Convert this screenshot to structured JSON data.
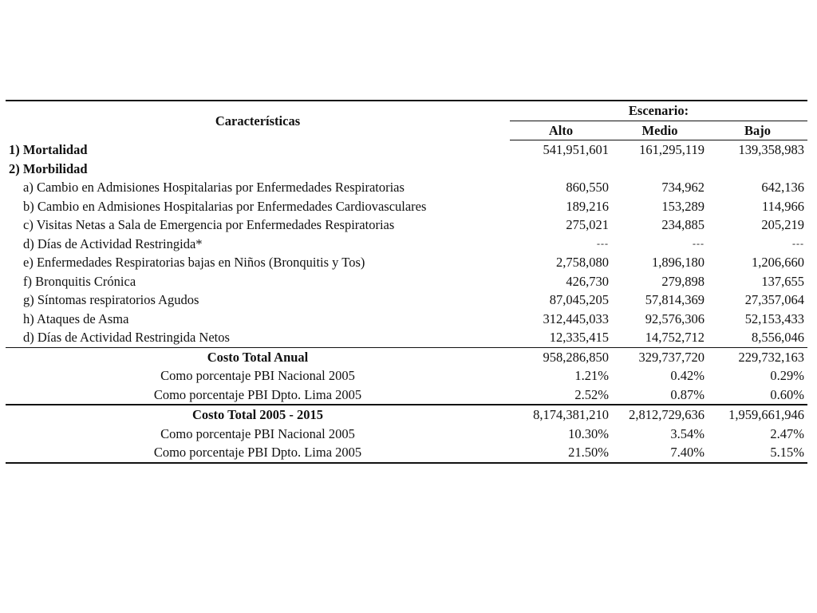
{
  "header": {
    "characteristics": "Características",
    "scenario": "Escenario:",
    "columns": [
      "Alto",
      "Medio",
      "Bajo"
    ]
  },
  "sections": {
    "mortalidad": {
      "label": "1) Mortalidad",
      "values": [
        "541,951,601",
        "161,295,119",
        "139,358,983"
      ]
    },
    "morbilidad": {
      "label": "2) Morbilidad"
    }
  },
  "rows": [
    {
      "label": "a) Cambio en Admisiones Hospitalarias por Enfermedades Respiratorias",
      "values": [
        "860,550",
        "734,962",
        "642,136"
      ]
    },
    {
      "label": "b) Cambio en Admisiones Hospitalarias por Enfermedades Cardiovasculares",
      "values": [
        "189,216",
        "153,289",
        "114,966"
      ]
    },
    {
      "label": "c) Visitas Netas a Sala de Emergencia por Enfermedades Respiratorias",
      "values": [
        "275,021",
        "234,885",
        "205,219"
      ]
    },
    {
      "label": "d) Días de Actividad Restringida*",
      "values": [
        "---",
        "---",
        "---"
      ]
    },
    {
      "label": "e) Enfermedades Respiratorias bajas en Niños (Bronquitis y Tos)",
      "values": [
        "2,758,080",
        "1,896,180",
        "1,206,660"
      ]
    },
    {
      "label": "f) Bronquitis Crónica",
      "values": [
        "426,730",
        "279,898",
        "137,655"
      ]
    },
    {
      "label": "g) Síntomas respiratorios Agudos",
      "values": [
        "87,045,205",
        "57,814,369",
        "27,357,064"
      ]
    },
    {
      "label": "h) Ataques de Asma",
      "values": [
        "312,445,033",
        "92,576,306",
        "52,153,433"
      ]
    },
    {
      "label": "d) Días de Actividad Restringida Netos",
      "values": [
        "12,335,415",
        "14,752,712",
        "8,556,046"
      ]
    }
  ],
  "annual": {
    "label": "Costo Total Anual",
    "values": [
      "958,286,850",
      "329,737,720",
      "229,732,163"
    ],
    "pct_nacional": {
      "label": "Como porcentaje PBI Nacional 2005",
      "values": [
        "1.21%",
        "0.42%",
        "0.29%"
      ]
    },
    "pct_lima": {
      "label": "Como porcentaje PBI Dpto. Lima 2005",
      "values": [
        "2.52%",
        "0.87%",
        "0.60%"
      ]
    }
  },
  "total": {
    "label": "Costo Total 2005 - 2015",
    "values": [
      "8,174,381,210",
      "2,812,729,636",
      "1,959,661,946"
    ],
    "pct_nacional": {
      "label": "Como porcentaje PBI Nacional 2005",
      "values": [
        "10.30%",
        "3.54%",
        "2.47%"
      ]
    },
    "pct_lima": {
      "label": "Como porcentaje PBI Dpto. Lima 2005",
      "values": [
        "21.50%",
        "7.40%",
        "5.15%"
      ]
    }
  }
}
